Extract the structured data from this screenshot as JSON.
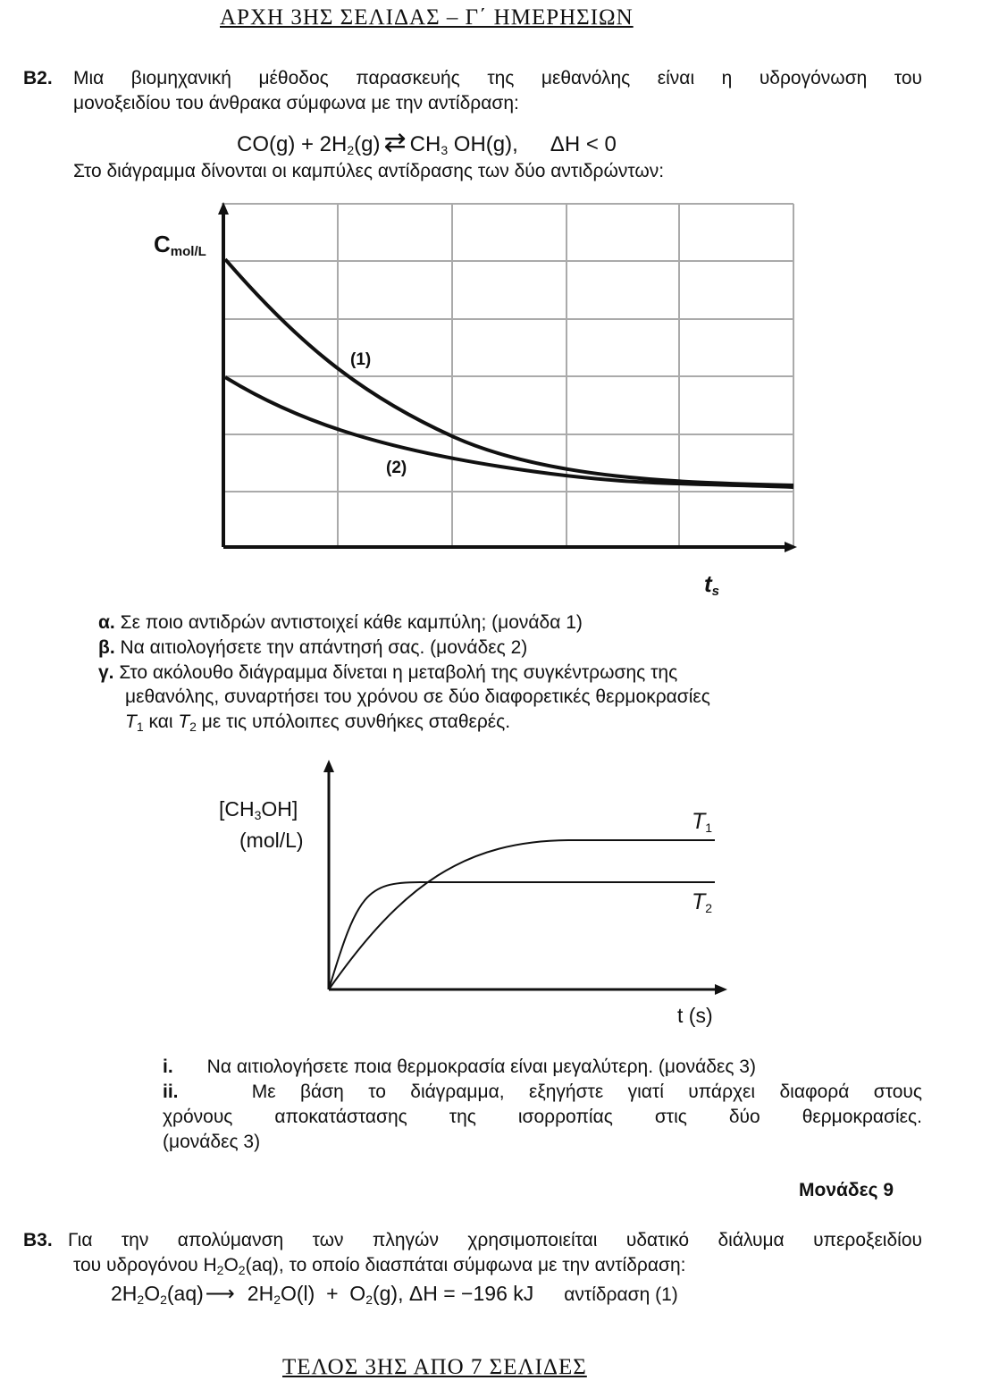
{
  "header": "ΑΡΧΗ 3ΗΣ ΣΕΛΙΔΑΣ – Γ΄ ΗΜΕΡΗΣΙΩΝ",
  "footer": "ΤΕΛΟΣ 3ΗΣ ΑΠΟ 7 ΣΕΛΙΔΕΣ",
  "b2": {
    "label": "Β2.",
    "line1": "Μια βιομηχανική μέθοδος παρασκευής της μεθανόλης είναι η υδρογόνωση του",
    "line2": "μονοξειδίου του άνθρακα σύμφωνα με την αντίδραση:",
    "equation": {
      "left": "CO(g) + 2H",
      "sub1": "2",
      "left2": "(g)",
      "arrow": "⇄",
      "right": "CH",
      "sub2": "3",
      "right2": " OH(g),",
      "dh": "ΔH < 0"
    },
    "intro": "Στο διάγραμμα δίνονται οι καμπύλες αντίδρασης των δύο αντιδρώντων:",
    "diagram1": {
      "ylabel": "C",
      "ylabel_sub": "mol/L",
      "xlabel": "t",
      "xlabel_sub": "s",
      "curve1": "(1)",
      "curve2": "(2)"
    },
    "qa": {
      "label": "α.",
      "text": "Σε ποιο αντιδρών αντιστοιχεί κάθε καμπύλη; (μονάδα 1)"
    },
    "qb": {
      "label": "β.",
      "text": "Να αιτιολογήσετε την απάντησή σας. (μονάδες 2)"
    },
    "qc": {
      "label": "γ.",
      "line1": "Στο ακόλουθο διάγραμμα δίνεται η μεταβολή της συγκέντρωσης της",
      "line2": "μεθανόλης, συναρτήσει του χρόνου σε δύο διαφορετικές θερμοκρασίες",
      "t1": "T",
      "t1sub": "1",
      "and": " και ",
      "t2": "T",
      "t2sub": "2",
      "rest": " με τις υπόλοιπες συνθήκες σταθερές."
    },
    "diagram2": {
      "ylabel1": "[CH",
      "ylabel_sub": "3",
      "ylabel1b": "OH]",
      "ylabel2": "(mol/L)",
      "xlabel": "t (s)",
      "t1": "T",
      "t1sub": "1",
      "t2": "T",
      "t2sub": "2"
    },
    "qi": {
      "label": "i.",
      "text": "Να αιτιολογήσετε ποια θερμοκρασία είναι μεγαλύτερη. (μονάδες 3)"
    },
    "qii": {
      "label": "ii.",
      "line1": "Με βάση το διάγραμμα, εξηγήστε γιατί υπάρχει διαφορά στους",
      "line2": "χρόνους αποκατάστασης της ισορροπίας στις δύο θερμοκρασίες.",
      "line3": "(μονάδες 3)"
    },
    "marks": "Μονάδες 9"
  },
  "b3": {
    "label": "Β3.",
    "line1": "Για την απολύμανση των πληγών χρησιμοποιείται υδατικό διάλυμα υπεροξειδίου",
    "line2a": "του υδρογόνου H",
    "line2b": "O",
    "line2c": "(aq), το οποίο διασπάται σύμφωνα με την αντίδραση:",
    "sub": "2",
    "equation": {
      "p1": "2H",
      "p2": "O",
      "p3": "(aq)",
      "arrow": "⟶",
      "p4": "2H",
      "p5": "O(l)  +  O",
      "p6": "(g),  ΔH = −196 kJ",
      "note": "αντίδραση (1)"
    }
  }
}
